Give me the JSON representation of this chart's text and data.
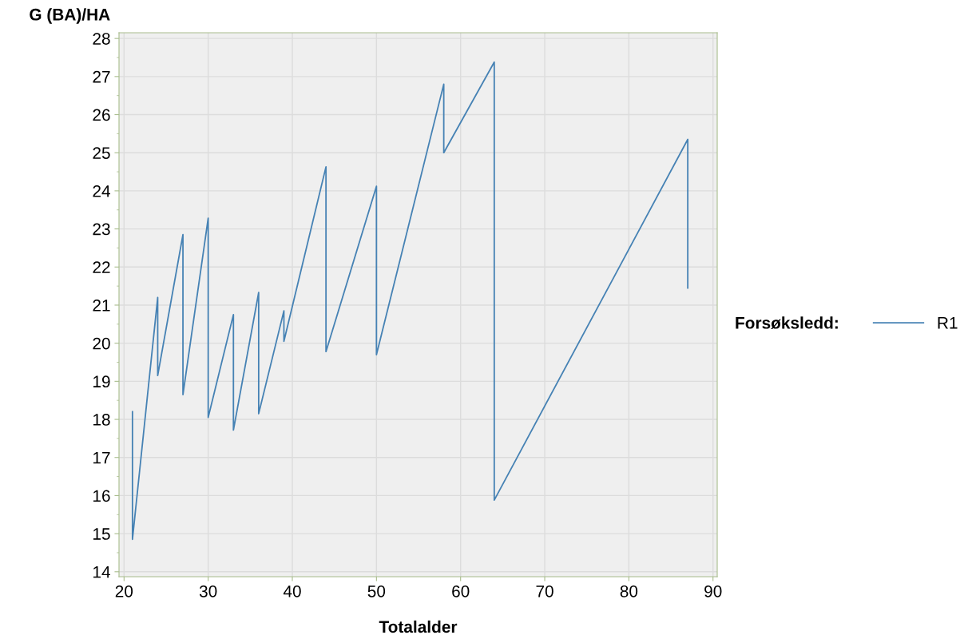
{
  "chart_data": {
    "type": "line",
    "xlabel": "Totalalder",
    "ylabel": "G (BA)/HA",
    "legend_title": "Forsøksledd:",
    "series": [
      {
        "name": "R1",
        "color": "#4682b4",
        "x": [
          21,
          21,
          24,
          24,
          27,
          27,
          30,
          30,
          33,
          33,
          36,
          36,
          39,
          39,
          44,
          44,
          50,
          50,
          58,
          58,
          64,
          64,
          87,
          87
        ],
        "values": [
          18.2,
          14.85,
          21.2,
          19.15,
          22.85,
          18.65,
          23.28,
          18.05,
          20.75,
          17.72,
          21.33,
          18.15,
          20.85,
          20.05,
          24.63,
          19.78,
          24.12,
          19.7,
          26.8,
          25.0,
          27.38,
          15.88,
          25.35,
          21.45
        ]
      }
    ],
    "xlim": [
      19.4,
      90.5
    ],
    "ylim": [
      13.87,
      28.15
    ],
    "xticks": [
      20,
      30,
      40,
      50,
      60,
      70,
      80,
      90
    ],
    "yticks": [
      14,
      15,
      16,
      17,
      18,
      19,
      20,
      21,
      22,
      23,
      24,
      25,
      26,
      27,
      28
    ],
    "grid": true,
    "legend": "right",
    "line_style": "solid",
    "marker": "none"
  }
}
